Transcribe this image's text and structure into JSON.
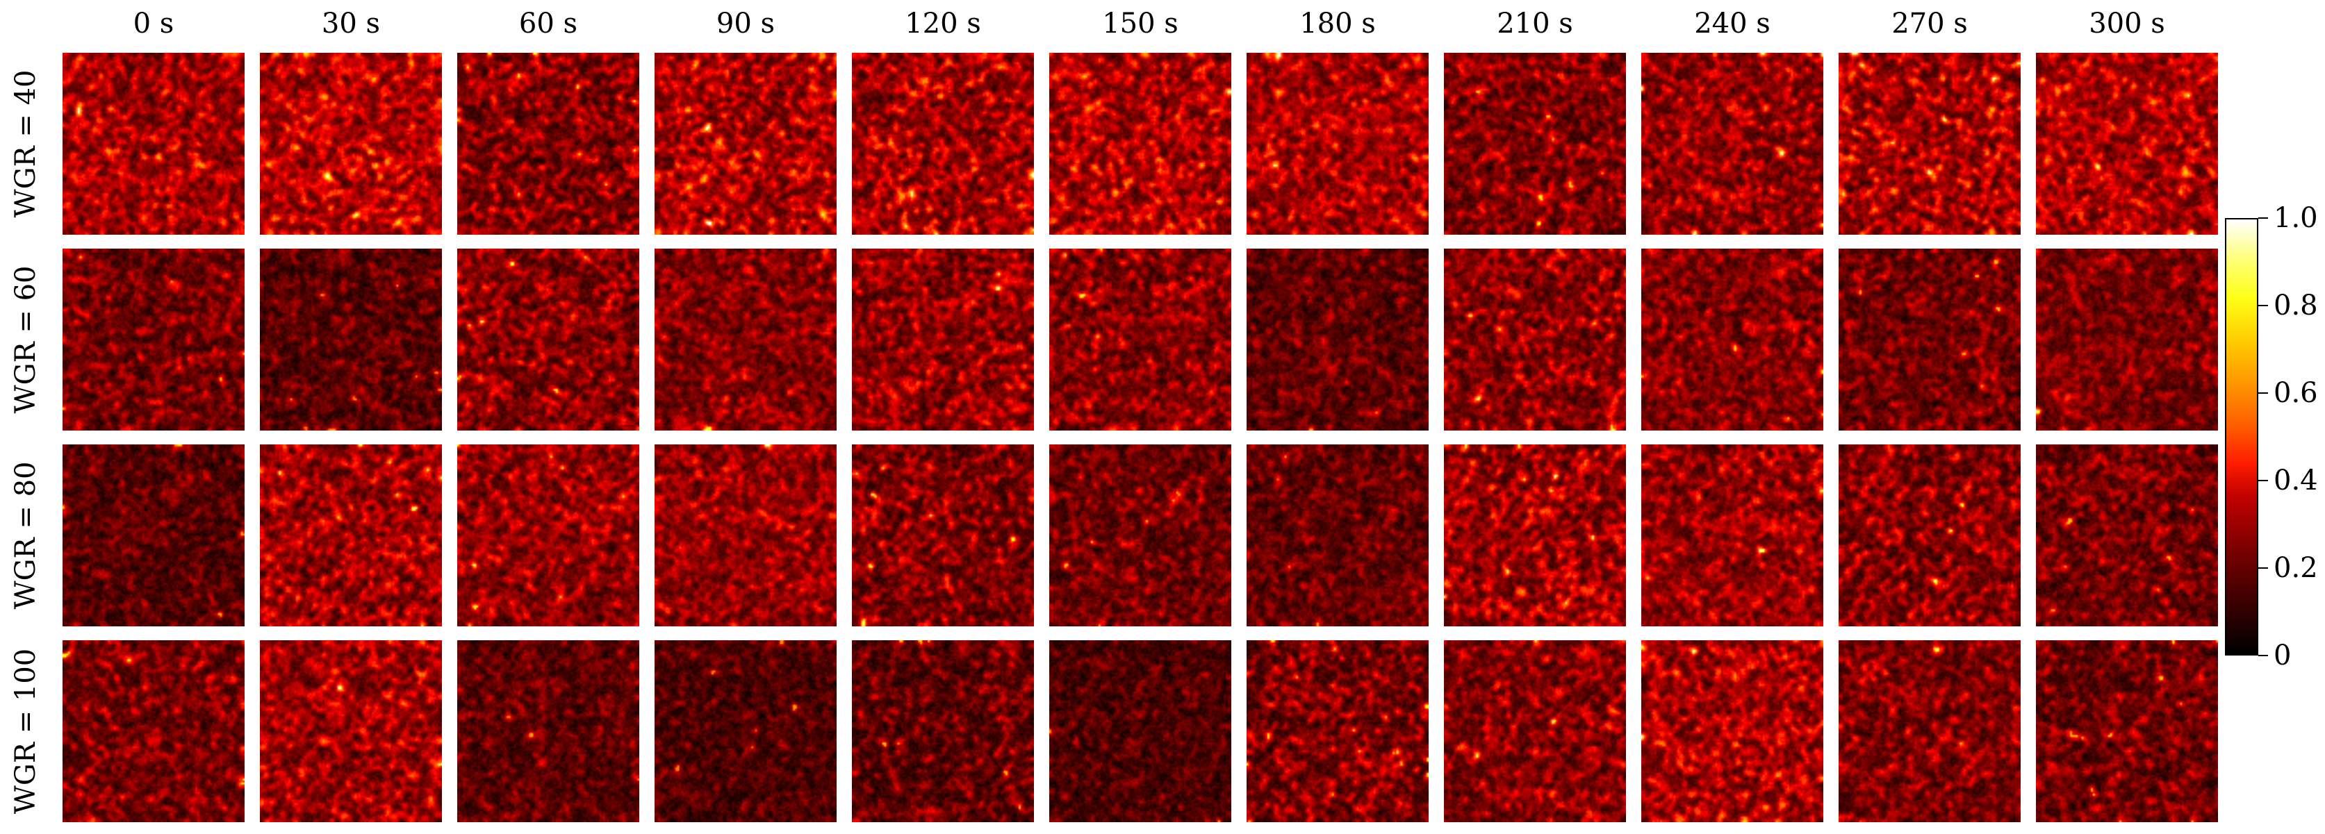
{
  "chart_data": {
    "type": "heatmap",
    "title": "",
    "columns": [
      "0 s",
      "30 s",
      "60 s",
      "90 s",
      "120 s",
      "150 s",
      "180 s",
      "210 s",
      "240 s",
      "270 s",
      "300 s"
    ],
    "rows": [
      "WGR = 40",
      "WGR = 60",
      "WGR = 80",
      "WGR = 100"
    ],
    "colorbar": {
      "colormap": "hot",
      "range": [
        0,
        1.0
      ],
      "ticks": [
        0,
        0.2,
        0.4,
        0.6,
        0.8,
        1.0
      ],
      "tick_labels": [
        "0",
        "0.2",
        "0.4",
        "0.6",
        "0.8",
        "1.0"
      ]
    },
    "mean_intensity": [
      [
        0.3,
        0.34,
        0.22,
        0.3,
        0.28,
        0.3,
        0.29,
        0.2,
        0.27,
        0.27,
        0.3
      ],
      [
        0.19,
        0.14,
        0.22,
        0.22,
        0.25,
        0.22,
        0.17,
        0.23,
        0.2,
        0.18,
        0.24
      ],
      [
        0.16,
        0.24,
        0.22,
        0.28,
        0.22,
        0.18,
        0.16,
        0.25,
        0.24,
        0.22,
        0.18
      ],
      [
        0.22,
        0.26,
        0.16,
        0.13,
        0.17,
        0.14,
        0.2,
        0.24,
        0.28,
        0.22,
        0.18
      ]
    ],
    "legend": "right"
  }
}
